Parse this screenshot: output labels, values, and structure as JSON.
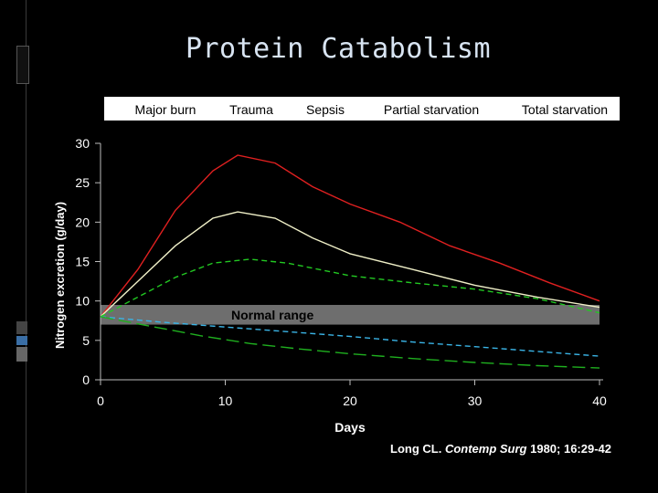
{
  "slide": {
    "title": "Protein Catabolism",
    "citation": {
      "prefix": "Long CL. ",
      "journal": "Contemp Surg",
      "suffix": " 1980; 16:29-42"
    }
  },
  "chart_data": {
    "type": "line",
    "title": "",
    "xlabel": "Days",
    "ylabel": "Nitrogen excretion (g/day)",
    "xlim": [
      0,
      40
    ],
    "ylim": [
      0,
      30
    ],
    "x_ticks": [
      0,
      10,
      20,
      30,
      40
    ],
    "y_ticks": [
      0,
      5,
      10,
      15,
      20,
      25,
      30
    ],
    "grid": false,
    "legend_position": "top",
    "legend": [
      "Major burn",
      "Trauma",
      "Sepsis",
      "Partial starvation",
      "Total starvation"
    ],
    "band": {
      "label": "Normal range",
      "y_range": [
        7,
        9.5
      ]
    },
    "series": [
      {
        "color": "#e02020",
        "dash": "solid",
        "x": [
          0,
          3,
          6,
          9,
          11,
          14,
          17,
          20,
          24,
          28,
          32,
          36,
          40
        ],
        "y": [
          8,
          14,
          21.5,
          26.5,
          28.5,
          27.5,
          24.5,
          22.3,
          20,
          17,
          14.8,
          12.3,
          10
        ]
      },
      {
        "color": "#f0f0c8",
        "dash": "solid",
        "x": [
          0,
          3,
          6,
          9,
          11,
          14,
          17,
          20,
          25,
          30,
          35,
          40
        ],
        "y": [
          8,
          12.5,
          17,
          20.5,
          21.3,
          20.5,
          18,
          16,
          14,
          12,
          10.5,
          9.2
        ]
      },
      {
        "color": "#22c822",
        "dash": "dash",
        "x": [
          0,
          3,
          6,
          9,
          12,
          15,
          20,
          25,
          30,
          35,
          40
        ],
        "y": [
          8,
          10.5,
          13,
          14.8,
          15.3,
          14.8,
          13.2,
          12.3,
          11.5,
          10.3,
          8.5
        ]
      },
      {
        "color": "#3ab4e6",
        "dash": "dash",
        "x": [
          0,
          5,
          10,
          15,
          20,
          25,
          30,
          35,
          40
        ],
        "y": [
          8,
          7.3,
          6.7,
          6.1,
          5.5,
          4.8,
          4.2,
          3.6,
          3
        ]
      },
      {
        "color": "#1fb01f",
        "dash": "longdash",
        "x": [
          0,
          4,
          8,
          12,
          16,
          20,
          25,
          30,
          35,
          40
        ],
        "y": [
          8,
          6.8,
          5.6,
          4.6,
          3.9,
          3.3,
          2.7,
          2.2,
          1.8,
          1.5
        ]
      }
    ]
  }
}
